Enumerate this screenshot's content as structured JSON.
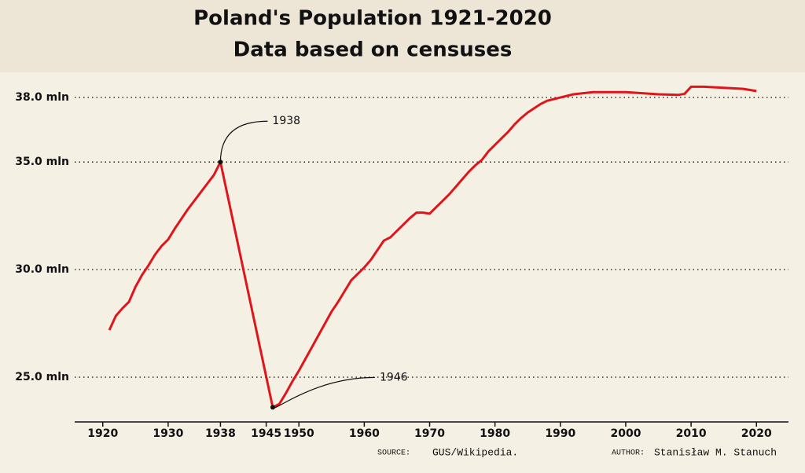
{
  "chart_data": {
    "type": "line",
    "title": "Poland's Population 1921-2020",
    "subtitle": "Data based on censuses",
    "x": [
      1921,
      1922,
      1923,
      1924,
      1925,
      1926,
      1927,
      1928,
      1929,
      1930,
      1931,
      1932,
      1933,
      1934,
      1935,
      1936,
      1937,
      1938,
      1946,
      1947,
      1948,
      1949,
      1950,
      1951,
      1952,
      1953,
      1954,
      1955,
      1956,
      1957,
      1958,
      1959,
      1960,
      1961,
      1962,
      1963,
      1964,
      1965,
      1966,
      1967,
      1968,
      1969,
      1970,
      1971,
      1972,
      1973,
      1974,
      1975,
      1976,
      1977,
      1978,
      1979,
      1980,
      1981,
      1982,
      1983,
      1984,
      1985,
      1986,
      1987,
      1988,
      1990,
      1992,
      1995,
      2000,
      2005,
      2008,
      2009,
      2010,
      2012,
      2015,
      2018,
      2020
    ],
    "series": [
      {
        "name": "Population",
        "color": "#e0151b",
        "values": [
          27.19,
          27.85,
          28.2,
          28.5,
          29.2,
          29.75,
          30.2,
          30.7,
          31.1,
          31.4,
          31.9,
          32.35,
          32.8,
          33.2,
          33.6,
          34.0,
          34.4,
          35.0,
          23.6,
          23.75,
          24.25,
          24.8,
          25.3,
          25.85,
          26.4,
          26.95,
          27.5,
          28.05,
          28.5,
          29.0,
          29.5,
          29.8,
          30.1,
          30.45,
          30.9,
          31.35,
          31.5,
          31.8,
          32.1,
          32.4,
          32.65,
          32.65,
          32.6,
          32.9,
          33.2,
          33.5,
          33.85,
          34.2,
          34.55,
          34.85,
          35.1,
          35.5,
          35.8,
          36.1,
          36.4,
          36.75,
          37.05,
          37.3,
          37.5,
          37.7,
          37.85,
          38.0,
          38.15,
          38.25,
          38.25,
          38.15,
          38.12,
          38.17,
          38.5,
          38.5,
          38.45,
          38.4,
          38.3
        ]
      }
    ],
    "xlim": [
      1915.7,
      2024.9
    ],
    "ylim": [
      22.92,
      38.88
    ],
    "xticks": [
      1920,
      1930,
      1938,
      1945,
      1950,
      1960,
      1970,
      1980,
      1990,
      2000,
      2010,
      2020
    ],
    "yticks": [
      {
        "value": 25,
        "label": "25.0 mln"
      },
      {
        "value": 30,
        "label": "30.0 mln"
      },
      {
        "value": 35,
        "label": "35.0 mln"
      },
      {
        "value": 38,
        "label": "38.0 mln"
      }
    ],
    "grid": true,
    "annotations": [
      {
        "label": "1938",
        "x": 1938,
        "y": 35.0
      },
      {
        "label": "1946",
        "x": 1946,
        "y": 23.6
      }
    ],
    "footer": {
      "source_label": "SOURCE:",
      "source": "GUS/Wikipedia.",
      "author_label": "AUTHOR:",
      "author": "Stanisław M. Stanuch"
    }
  }
}
